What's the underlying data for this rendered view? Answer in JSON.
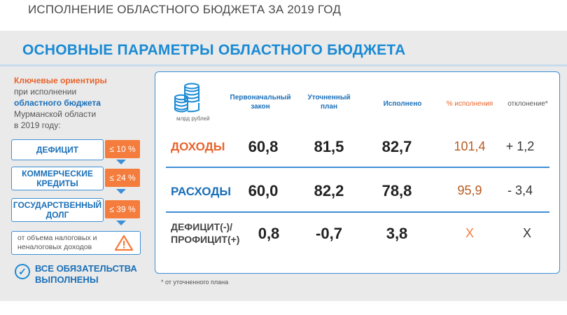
{
  "top_title": "ИСПОЛНЕНИЕ ОБЛАСТНОГО БЮДЖЕТА ЗА 2019 ГОД",
  "main_title": "ОСНОВНЫЕ ПАРАМЕТРЫ ОБЛАСТНОГО БЮДЖЕТА",
  "intro": {
    "line1": "Ключевые ориентиры",
    "line2": "при исполнении",
    "line3": "областного бюджета",
    "line4": "Мурманской области",
    "line5": "в 2019 году:"
  },
  "indicators": [
    {
      "label": "ДЕФИЦИТ",
      "limit": "≤ 10 %"
    },
    {
      "label1": "КОММЕРЧЕСКИЕ",
      "label2": "КРЕДИТЫ",
      "limit": "≤ 24 %"
    },
    {
      "label1": "ГОСУДАРСТВЕННЫЙ",
      "label2": "ДОЛГ",
      "limit": "≤ 39 %"
    }
  ],
  "note": {
    "line1": "от объема налоговых и",
    "line2": "неналоговых доходов"
  },
  "done": {
    "line1": "ВСЕ ОБЯЗАТЕЛЬСТВА",
    "line2": "ВЫПОЛНЕНЫ"
  },
  "table": {
    "unit": "млрд рублей",
    "headers": {
      "initial1": "Первоначальный",
      "initial2": "закон",
      "revised1": "Уточненный",
      "revised2": "план",
      "executed": "Исполнено",
      "percent": "% исполнения",
      "deviation": "отклонение*"
    },
    "rows": [
      {
        "label": "ДОХОДЫ",
        "initial": "60,8",
        "revised": "81,5",
        "executed": "82,7",
        "percent": "101,4",
        "deviation": "+ 1,2"
      },
      {
        "label": "РАСХОДЫ",
        "initial": "60,0",
        "revised": "82,2",
        "executed": "78,8",
        "percent": "95,9",
        "deviation": "- 3,4"
      },
      {
        "label1": "ДЕФИЦИТ(-)/",
        "label2": "ПРОФИЦИТ(+)",
        "initial": "0,8",
        "revised": "-0,7",
        "executed": "3,8",
        "percent": "Х",
        "deviation": "Х"
      }
    ],
    "footnote": "* от уточненного плана"
  },
  "colors": {
    "accent": "#1a8ad4",
    "orange": "#f47c3c",
    "panel": "#eaeaea"
  }
}
